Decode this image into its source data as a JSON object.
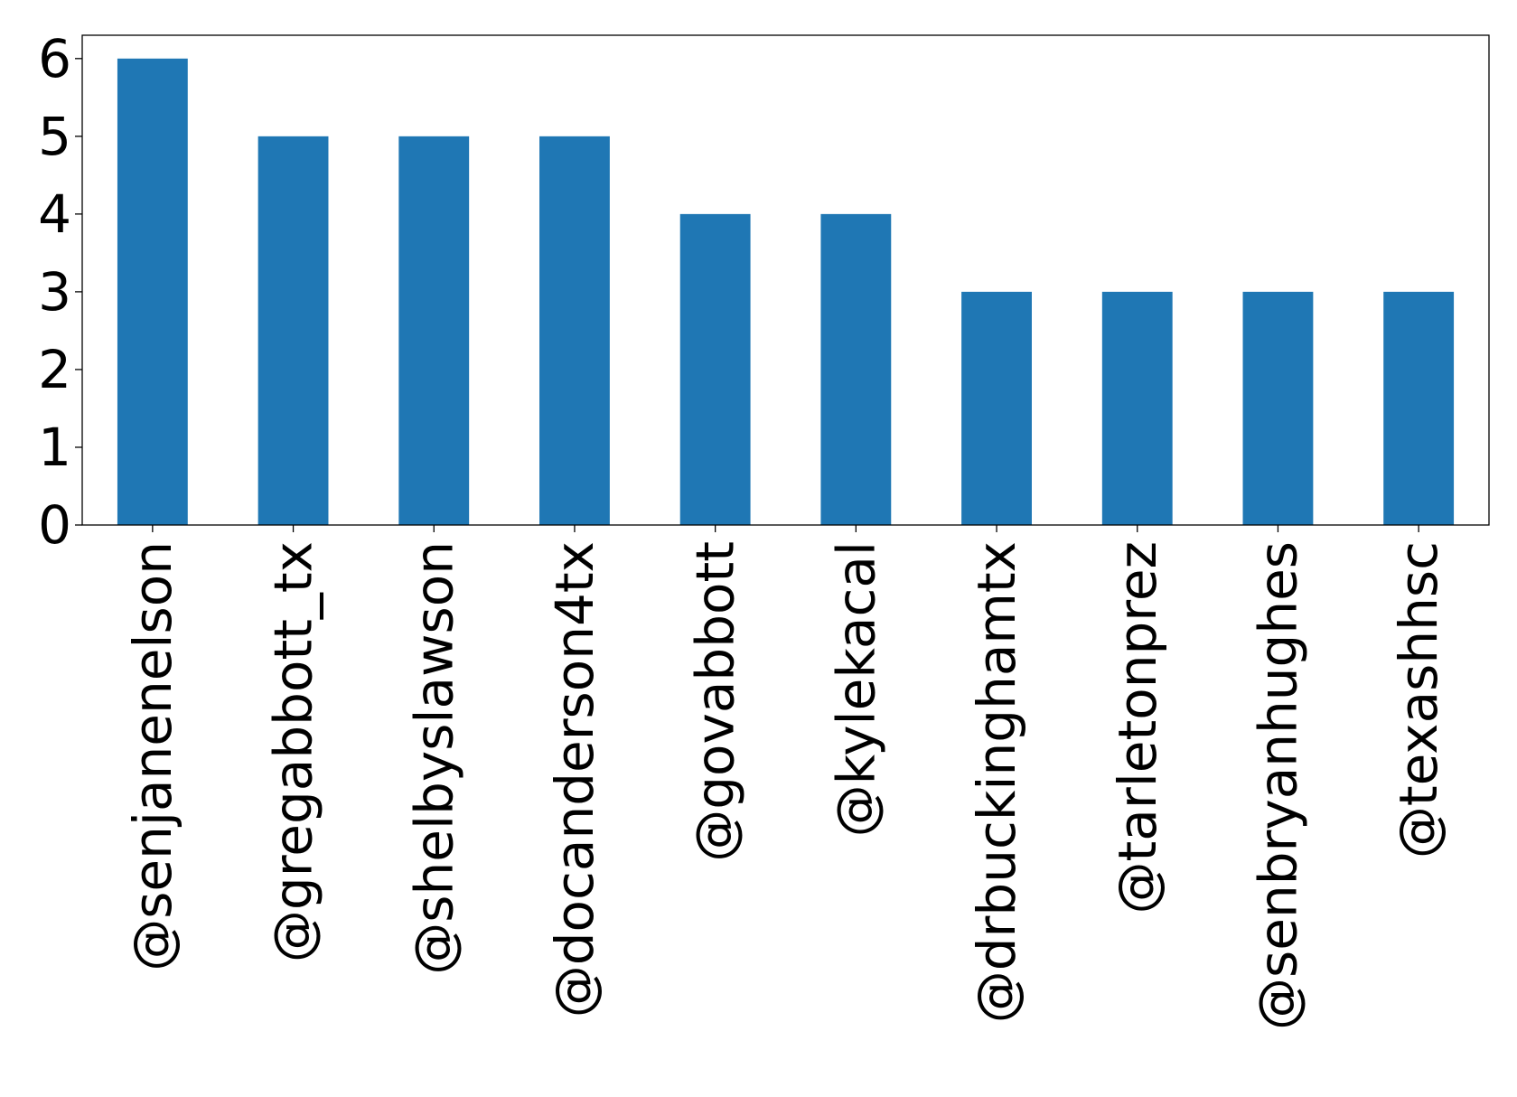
{
  "colors": {
    "bar": "#1f77b4",
    "axis": "#000000",
    "background": "#ffffff"
  },
  "chart_data": {
    "type": "bar",
    "title": "",
    "xlabel": "",
    "ylabel": "",
    "categories": [
      "@senjanenelson",
      "@gregabbott_tx",
      "@shelbyslawson",
      "@docanderson4tx",
      "@govabbott",
      "@kylekacal",
      "@drbuckinghamtx",
      "@tarletonprez",
      "@senbryanhughes",
      "@texashhsc"
    ],
    "values": [
      6,
      5,
      5,
      5,
      4,
      4,
      3,
      3,
      3,
      3
    ],
    "ylim": [
      0,
      6.3
    ],
    "yticks": [
      0,
      1,
      2,
      3,
      4,
      5,
      6
    ],
    "grid": false,
    "legend": false
  }
}
